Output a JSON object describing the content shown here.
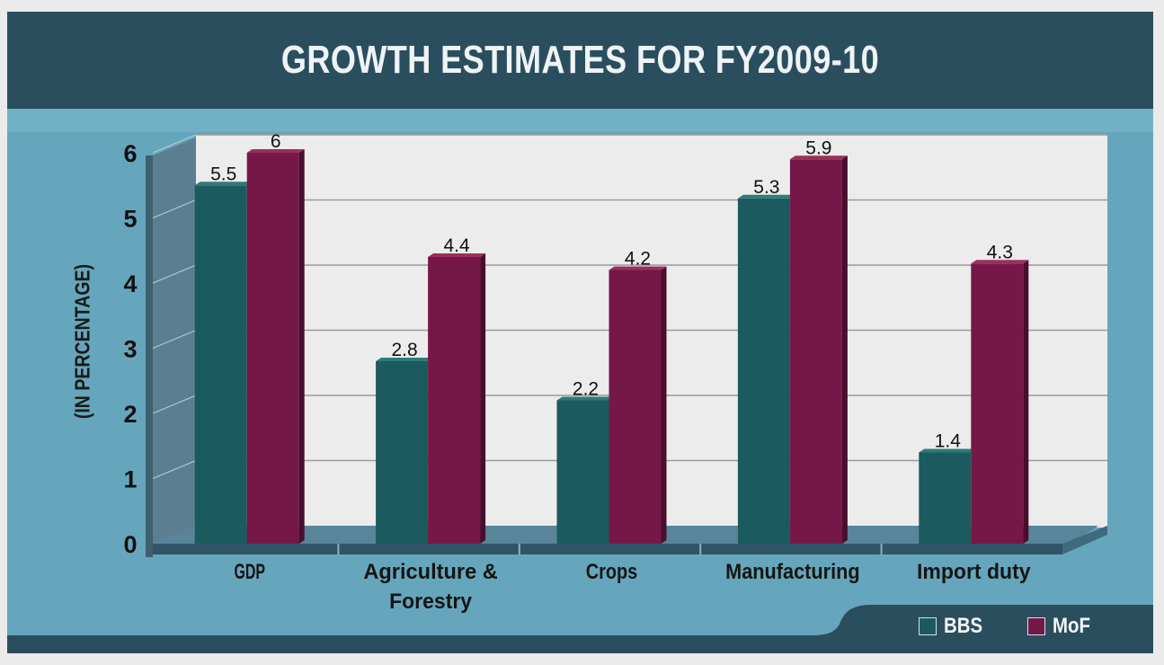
{
  "colors": {
    "title_bg": "#2b4e5f",
    "panel_bg": "#66a6bc",
    "plot_bg": "#ececec",
    "bbs": "#1b5a5f",
    "mof": "#751848",
    "text": "#111111",
    "legend_text": "#f2f6f8"
  },
  "chart_data": {
    "type": "bar",
    "title": "GROWTH ESTIMATES FOR FY2009-10",
    "xlabel": "",
    "ylabel": "(IN PERCENTAGE)",
    "ylim": [
      0,
      6
    ],
    "yticks": [
      "0",
      "1",
      "2",
      "3",
      "4",
      "5",
      "6"
    ],
    "grid": true,
    "legend_position": "bottom-right",
    "categories": [
      "GDP",
      "Agriculture & Forestry",
      "Crops",
      "Manufacturing",
      "Import duty"
    ],
    "category_lines": [
      [
        "GDP"
      ],
      [
        "Agriculture &",
        "Forestry"
      ],
      [
        "Crops"
      ],
      [
        "Manufacturing"
      ],
      [
        "Import duty"
      ]
    ],
    "series": [
      {
        "name": "BBS",
        "values": [
          5.5,
          2.8,
          2.2,
          5.3,
          1.4
        ],
        "labels": [
          "5.5",
          "2.8",
          "2.2",
          "5.3",
          "1.4"
        ]
      },
      {
        "name": "MoF",
        "values": [
          6,
          4.4,
          4.2,
          5.9,
          4.3
        ],
        "labels": [
          "6",
          "4.4",
          "4.2",
          "5.9",
          "4.3"
        ]
      }
    ]
  },
  "legend": [
    {
      "label": "BBS"
    },
    {
      "label": "MoF"
    }
  ]
}
